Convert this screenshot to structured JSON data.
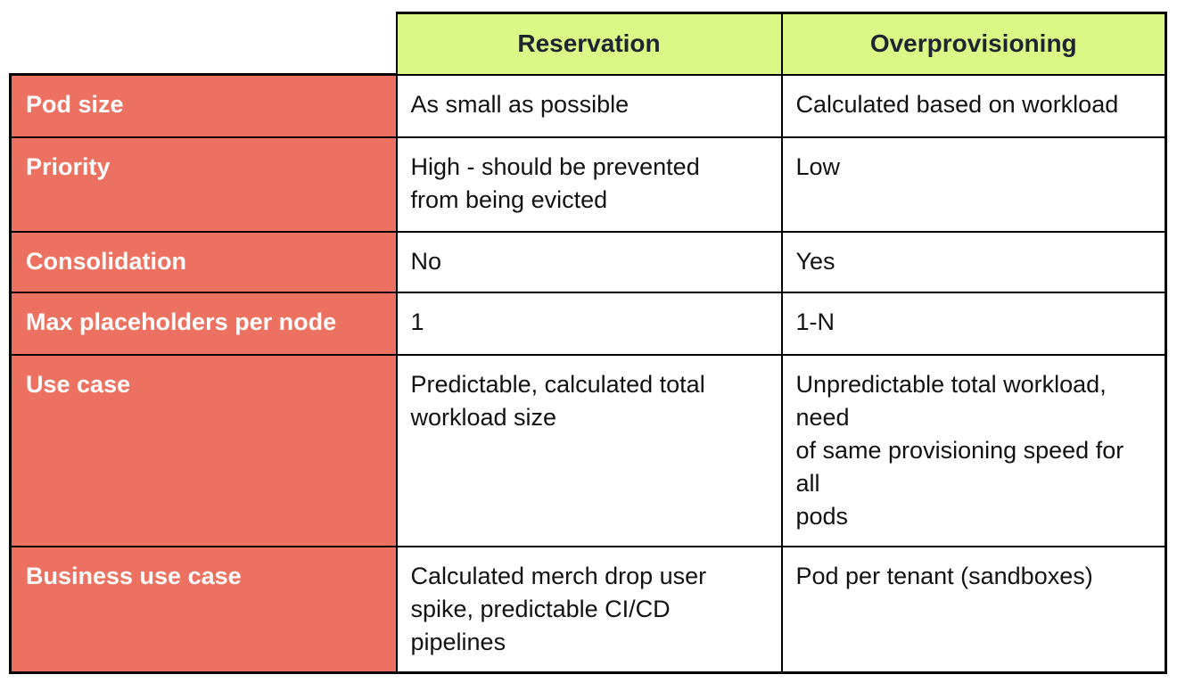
{
  "colors": {
    "header_bg": "#dbf887",
    "label_bg": "#ec7160",
    "border": "#000000",
    "header_text": "#1f2430",
    "label_text": "#ffffff",
    "cell_text": "#121212",
    "page_bg": "#ffffff"
  },
  "table": {
    "columns": [
      "Reservation",
      "Overprovisioning"
    ],
    "rows": [
      {
        "label": "Pod size",
        "reservation": "As small as possible",
        "overprovisioning": "Calculated based on workload"
      },
      {
        "label": "Priority",
        "reservation": "High - should be prevented\nfrom being evicted",
        "overprovisioning": "Low"
      },
      {
        "label": "Consolidation",
        "reservation": "No",
        "overprovisioning": "Yes"
      },
      {
        "label": "Max placeholders per node",
        "reservation": "1",
        "overprovisioning": "1-N"
      },
      {
        "label": "Use case",
        "reservation": "Predictable, calculated total\nworkload size",
        "overprovisioning": "Unpredictable total workload,\nneed\nof same provisioning speed for\nall\npods"
      },
      {
        "label": "Business use case",
        "reservation": "Calculated merch drop user\nspike, predictable CI/CD\npipelines",
        "overprovisioning": "Pod per tenant (sandboxes)"
      }
    ]
  },
  "chart_data": {
    "type": "table",
    "columns": [
      "",
      "Reservation",
      "Overprovisioning"
    ],
    "rows": [
      [
        "Pod size",
        "As small as possible",
        "Calculated based on workload"
      ],
      [
        "Priority",
        "High - should be prevented from being evicted",
        "Low"
      ],
      [
        "Consolidation",
        "No",
        "Yes"
      ],
      [
        "Max placeholders per node",
        "1",
        "1-N"
      ],
      [
        "Use case",
        "Predictable, calculated total workload size",
        "Unpredictable total workload, need of same provisioning speed for all pods"
      ],
      [
        "Business use case",
        "Calculated merch drop user spike, predictable CI/CD pipelines",
        "Pod per tenant (sandboxes)"
      ]
    ],
    "title": "",
    "legend": "none",
    "grid": "on"
  }
}
